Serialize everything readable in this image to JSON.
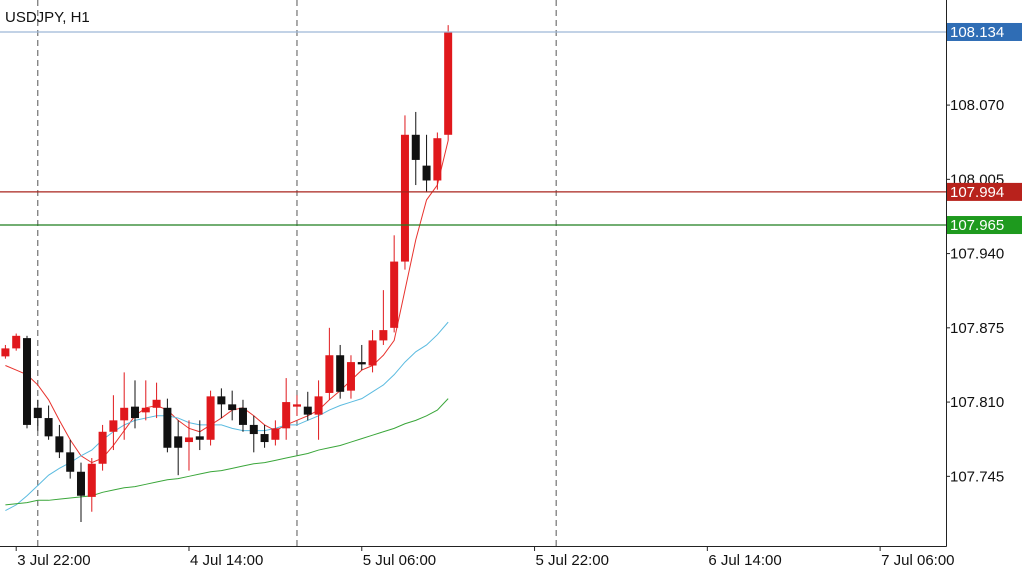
{
  "chart_data": {
    "type": "candlestick",
    "title": "USDJPY, H1",
    "x": [
      0,
      1,
      2,
      3,
      4,
      5,
      6,
      7,
      8,
      9,
      10,
      11,
      12,
      13,
      14,
      15,
      16,
      17,
      18,
      19,
      20,
      21,
      22,
      23,
      24,
      25,
      26,
      27,
      28,
      29,
      30,
      31,
      32,
      33,
      34,
      35,
      36,
      37,
      38,
      39,
      40,
      41
    ],
    "open": [
      107.85,
      107.857,
      107.866,
      107.805,
      107.796,
      107.78,
      107.766,
      107.749,
      107.727,
      107.756,
      107.784,
      107.794,
      107.806,
      107.801,
      107.805,
      107.805,
      107.78,
      107.775,
      107.78,
      107.777,
      107.815,
      107.808,
      107.805,
      107.79,
      107.782,
      107.777,
      107.787,
      107.806,
      107.806,
      107.799,
      107.818,
      107.851,
      107.82,
      107.845,
      107.842,
      107.864,
      107.875,
      107.933,
      108.044,
      108.017,
      108.004,
      108.044
    ],
    "high": [
      107.86,
      107.87,
      107.868,
      107.812,
      107.807,
      107.79,
      107.777,
      107.757,
      107.761,
      107.79,
      107.816,
      107.836,
      107.829,
      107.829,
      107.827,
      107.813,
      107.794,
      107.794,
      107.794,
      107.82,
      107.822,
      107.82,
      107.812,
      107.798,
      107.79,
      107.794,
      107.831,
      107.816,
      107.819,
      107.829,
      107.875,
      107.86,
      107.851,
      107.86,
      107.873,
      107.908,
      107.956,
      108.061,
      108.064,
      108.044,
      108.046,
      108.14
    ],
    "low": [
      107.848,
      107.855,
      107.787,
      107.785,
      107.777,
      107.761,
      107.743,
      107.705,
      107.714,
      107.75,
      107.768,
      107.777,
      107.787,
      107.794,
      107.796,
      107.766,
      107.746,
      107.75,
      107.768,
      107.772,
      107.796,
      107.794,
      107.784,
      107.766,
      107.77,
      107.772,
      107.777,
      107.798,
      107.794,
      107.777,
      107.812,
      107.813,
      107.813,
      107.838,
      107.836,
      107.86,
      107.871,
      107.926,
      108.0,
      107.994,
      107.996,
      108.039
    ],
    "close": [
      107.857,
      107.868,
      107.79,
      107.796,
      107.78,
      107.766,
      107.749,
      107.728,
      107.756,
      107.784,
      107.794,
      107.805,
      107.796,
      107.805,
      107.812,
      107.77,
      107.77,
      107.779,
      107.777,
      107.815,
      107.808,
      107.803,
      107.79,
      107.782,
      107.775,
      107.787,
      107.81,
      107.808,
      107.799,
      107.815,
      107.851,
      107.819,
      107.845,
      107.843,
      107.864,
      107.873,
      107.933,
      108.044,
      108.022,
      108.004,
      108.041,
      108.134
    ],
    "up_color": "#e0181c",
    "down_color": "#111111",
    "series": [
      {
        "type": "line",
        "color": "#e8332e",
        "values": [
          107.842,
          107.838,
          107.834,
          107.825,
          107.812,
          107.794,
          107.777,
          107.763,
          107.757,
          107.761,
          107.772,
          107.785,
          107.798,
          107.805,
          107.807,
          107.803,
          107.794,
          107.787,
          107.784,
          107.79,
          107.796,
          107.803,
          107.805,
          107.798,
          107.79,
          107.785,
          107.79,
          107.794,
          107.798,
          107.803,
          107.812,
          107.82,
          107.829,
          107.838,
          107.842,
          107.851,
          107.864,
          107.908,
          107.952,
          107.987,
          108.0,
          108.039
        ]
      },
      {
        "type": "line",
        "color": "#5bbbe0",
        "values": [
          107.715,
          107.72,
          107.728,
          107.737,
          107.746,
          107.752,
          107.757,
          107.763,
          107.768,
          107.777,
          107.784,
          107.79,
          107.794,
          107.796,
          107.798,
          107.798,
          107.796,
          107.792,
          107.79,
          107.79,
          107.79,
          107.787,
          107.785,
          107.785,
          107.785,
          107.787,
          107.79,
          107.79,
          107.794,
          107.798,
          107.803,
          107.807,
          107.81,
          107.813,
          107.819,
          107.825,
          107.834,
          107.845,
          107.854,
          107.86,
          107.869,
          107.88
        ]
      },
      {
        "type": "line",
        "color": "#3aa63a",
        "values": [
          107.72,
          107.721,
          107.722,
          107.724,
          107.724,
          107.725,
          107.726,
          107.727,
          107.728,
          107.731,
          107.733,
          107.735,
          107.736,
          107.738,
          107.74,
          107.742,
          107.743,
          107.745,
          107.747,
          107.749,
          107.75,
          107.752,
          107.754,
          107.756,
          107.757,
          107.759,
          107.761,
          107.763,
          107.765,
          107.768,
          107.77,
          107.772,
          107.775,
          107.778,
          107.781,
          107.784,
          107.787,
          107.791,
          107.794,
          107.798,
          107.803,
          107.813
        ]
      }
    ],
    "xlim": [
      -0.5,
      87.1
    ],
    "xticks": [
      {
        "value": 1,
        "label": "3 Jul 22:00"
      },
      {
        "value": 17,
        "label": "4 Jul 14:00"
      },
      {
        "value": 33,
        "label": "5 Jul 06:00"
      },
      {
        "value": 49,
        "label": "5 Jul 22:00"
      },
      {
        "value": 65,
        "label": "6 Jul 14:00"
      },
      {
        "value": 81,
        "label": "7 Jul 06:00"
      }
    ],
    "period_separators": [
      3,
      27,
      51
    ],
    "ylim": [
      107.684,
      108.162
    ],
    "yticks": [
      107.745,
      {
        "value": 107.81,
        "label": "107.810"
      },
      107.875,
      {
        "value": 107.94,
        "label": "107.940"
      },
      108.005,
      {
        "value": 108.07,
        "label": "108.070"
      }
    ],
    "price_lines": [
      {
        "value": 108.134,
        "color": "#9db7d6",
        "box_color": "#2f6db5"
      },
      {
        "value": 107.994,
        "color": "#a8241d",
        "box_color": "#b8221c"
      },
      {
        "value": 107.965,
        "color": "#1f7d1f",
        "box_color": "#1e9a1e"
      }
    ]
  }
}
